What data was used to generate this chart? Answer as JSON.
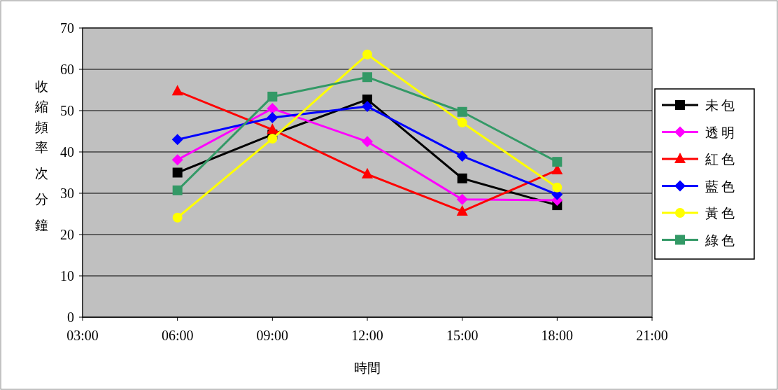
{
  "chart_data": {
    "type": "line",
    "xlabel": "時間",
    "ylabel": "收縮頻率次分鐘",
    "x": [
      6,
      9,
      12,
      15,
      18
    ],
    "xlim": [
      3,
      21
    ],
    "xticks": [
      {
        "value": 3,
        "label": "03:00"
      },
      {
        "value": 6,
        "label": "06:00"
      },
      {
        "value": 9,
        "label": "09:00"
      },
      {
        "value": 12,
        "label": "12:00"
      },
      {
        "value": 15,
        "label": "15:00"
      },
      {
        "value": 18,
        "label": "18:00"
      },
      {
        "value": 21,
        "label": "21:00"
      }
    ],
    "ylim": [
      0,
      70
    ],
    "yticks": [
      0,
      10,
      20,
      30,
      40,
      50,
      60,
      70
    ],
    "grid": "y",
    "legend": "right",
    "line_style": "solid",
    "series": [
      {
        "name": "未包",
        "color": "#000000",
        "marker": "square",
        "values": [
          35,
          44.2,
          52.7,
          33.6,
          27.1
        ]
      },
      {
        "name": "透明",
        "color": "#ff00ff",
        "marker": "diamond",
        "values": [
          38.1,
          50.5,
          42.5,
          28.5,
          28.3
        ]
      },
      {
        "name": "紅色",
        "color": "#ff0000",
        "marker": "triangle",
        "values": [
          54.7,
          45.4,
          34.6,
          25.6,
          35.6
        ]
      },
      {
        "name": "藍色",
        "color": "#0000ff",
        "marker": "diamond",
        "values": [
          43,
          48.3,
          51,
          39,
          29.7
        ]
      },
      {
        "name": "黃色",
        "color": "#ffff00",
        "marker": "circle",
        "values": [
          24.1,
          43.2,
          63.6,
          47.1,
          31.4
        ]
      },
      {
        "name": "綠色",
        "color": "#339966",
        "marker": "square",
        "values": [
          30.7,
          53.4,
          58.1,
          49.7,
          37.6
        ]
      }
    ]
  }
}
